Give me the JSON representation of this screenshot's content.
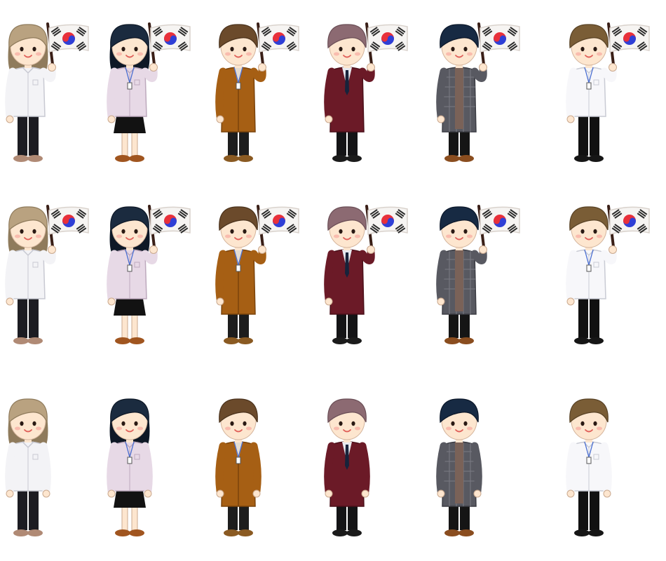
{
  "palette": {
    "skin": "#fde6cf",
    "skin_line": "#6b4a3a",
    "blush": "#f7a9a0",
    "lips": "#e0605a",
    "flag_white": "#f6f4f2",
    "flag_red": "#e8303a",
    "flag_blue": "#2f3fd6",
    "flag_trigram": "#2a2a2a",
    "pole": "#3a1f17"
  },
  "characters": [
    {
      "id": "woman-blonde-white-shirt",
      "hair": "#b9a280",
      "hair_dark": "#8f7b5c",
      "top": "#f3f3f6",
      "top_dark": "#c8c9d2",
      "top_kind": "shirt",
      "bottom": "#1c1c22",
      "bottom_kind": "pants",
      "shoes": "#b08a75",
      "long_hair": true,
      "lanyard": false
    },
    {
      "id": "woman-navy-lilac-blouse",
      "hair": "#1b2b3f",
      "hair_dark": "#0e1826",
      "top": "#e7d9e6",
      "top_dark": "#bda9bd",
      "top_kind": "shirt",
      "bottom": "#121212",
      "bottom_kind": "skirt",
      "shoes": "#a0551f",
      "long_hair": true,
      "lanyard": true
    },
    {
      "id": "woman-brown-camel-coat",
      "hair": "#6b4a2b",
      "hair_dark": "#4a321c",
      "top": "#a65f14",
      "top_dark": "#7a430b",
      "top_kind": "coat",
      "bottom": "#1d1d1d",
      "bottom_kind": "pants",
      "shoes": "#8a5a22",
      "long_hair": false,
      "lanyard": true
    },
    {
      "id": "man-mauve-burgundy-suit",
      "hair": "#8c6a72",
      "hair_dark": "#6a4e56",
      "top": "#6b1a27",
      "top_dark": "#4a0f19",
      "top_kind": "suit",
      "bottom": "#141416",
      "bottom_kind": "pants",
      "shoes": "#1b1b1b",
      "long_hair": false,
      "lanyard": false
    },
    {
      "id": "man-navy-gray-coat",
      "hair": "#172a43",
      "hair_dark": "#0b1729",
      "top": "#585961",
      "top_dark": "#3b3c43",
      "top_kind": "plaid",
      "bottom": "#151515",
      "bottom_kind": "pants",
      "shoes": "#8a4d1f",
      "long_hair": false,
      "lanyard": false
    },
    {
      "id": "man-brown-white-shirt",
      "hair": "#7a5d36",
      "hair_dark": "#584225",
      "top": "#f7f7fa",
      "top_dark": "#c9cbd4",
      "top_kind": "shirt",
      "bottom": "#111111",
      "bottom_kind": "pants",
      "shoes": "#161616",
      "long_hair": false,
      "lanyard": true
    }
  ],
  "rows": [
    {
      "id": "row-flag-a",
      "with_flag": true
    },
    {
      "id": "row-flag-b",
      "with_flag": true
    },
    {
      "id": "row-standing",
      "with_flag": false
    }
  ]
}
